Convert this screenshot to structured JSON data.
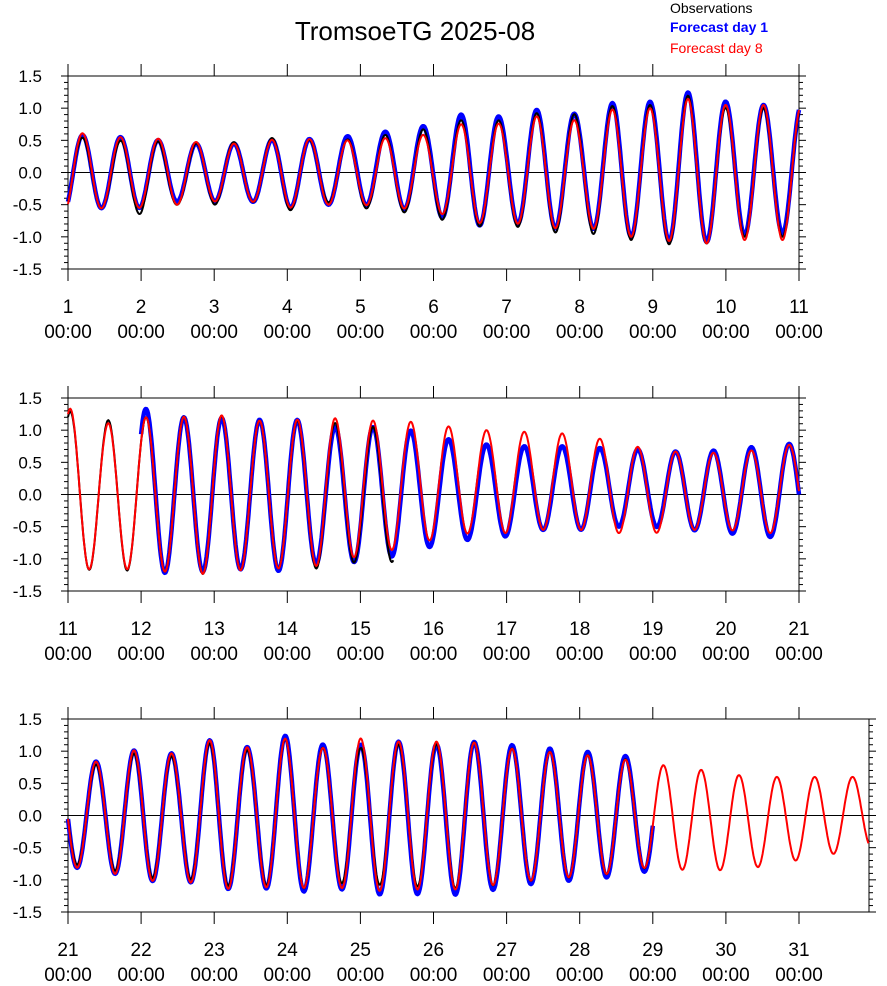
{
  "chart_data": {
    "type": "line",
    "title": "TromsoeTG 2025-08",
    "legend": {
      "placement": "top-right",
      "entries": [
        {
          "name": "Observations",
          "color": "#000000"
        },
        {
          "name": "Forecast day 1",
          "color": "#0000ff"
        },
        {
          "name": "Forecast day 8",
          "color": "#ff0000"
        }
      ]
    },
    "ylim": [
      -1.5,
      1.5
    ],
    "yticks": [
      "1.5",
      "1.0",
      "0.5",
      "0.0",
      "-0.5",
      "-1.0",
      "-1.5"
    ],
    "grid": false,
    "tick_time_label": "00:00",
    "panels": [
      {
        "xrange_days": [
          1,
          11
        ],
        "xticks": [
          "1",
          "2",
          "3",
          "4",
          "5",
          "6",
          "7",
          "8",
          "9",
          "10",
          "11"
        ],
        "series": [
          {
            "name": "Observations",
            "color": "#000000",
            "day_start": 1.0,
            "day_end": 11.0,
            "amplitude": [
              0.6,
              0.5,
              0.6,
              0.45,
              0.5,
              0.45,
              0.6,
              0.45,
              0.55,
              0.6,
              0.7,
              0.85,
              0.8,
              0.95,
              0.9,
              1.05,
              1.05,
              1.2,
              1.0,
              1.0,
              1.0
            ],
            "mean": [
              0.0,
              -0.05,
              -0.05,
              -0.05,
              0.0,
              0.0,
              0.0,
              0.0,
              0.0,
              0.0,
              0.0,
              0.0,
              0.0,
              0.0,
              0.0,
              0.0,
              0.0,
              0.0,
              0.0,
              0.0,
              0.0
            ]
          },
          {
            "name": "Forecast day 1",
            "color": "#0000ff",
            "day_start": 1.0,
            "day_end": 11.0,
            "amplitude": [
              0.6,
              0.55,
              0.55,
              0.45,
              0.45,
              0.45,
              0.55,
              0.5,
              0.55,
              0.6,
              0.7,
              0.9,
              0.8,
              0.95,
              0.85,
              1.05,
              1.05,
              1.2,
              1.05,
              1.0,
              1.0
            ],
            "mean": [
              0.0,
              0.0,
              0.0,
              0.0,
              0.0,
              0.0,
              0.0,
              0.0,
              0.05,
              0.05,
              0.05,
              0.05,
              0.05,
              0.05,
              0.05,
              0.05,
              0.05,
              0.05,
              0.05,
              0.05,
              0.05
            ]
          },
          {
            "name": "Forecast day 8",
            "color": "#ff0000",
            "day_start": 1.0,
            "day_end": 11.0,
            "amplitude": [
              0.65,
              0.55,
              0.55,
              0.5,
              0.45,
              0.45,
              0.55,
              0.5,
              0.5,
              0.55,
              0.6,
              0.8,
              0.75,
              0.9,
              0.8,
              1.0,
              1.0,
              1.15,
              1.05,
              1.05,
              1.05
            ],
            "mean": [
              0.0,
              0.0,
              0.0,
              0.0,
              0.0,
              0.0,
              0.0,
              0.0,
              0.0,
              0.0,
              0.0,
              0.0,
              0.0,
              0.0,
              0.0,
              0.0,
              0.0,
              0.0,
              0.0,
              0.0,
              0.0
            ]
          }
        ]
      },
      {
        "xrange_days": [
          11,
          21
        ],
        "xticks": [
          "11",
          "12",
          "13",
          "14",
          "15",
          "16",
          "17",
          "18",
          "19",
          "20",
          "21"
        ],
        "series": [
          {
            "name": "Observations",
            "color": "#000000",
            "day_start": 11.0,
            "day_end": 15.45,
            "amplitude": [
              1.25,
              1.15,
              1.2,
              1.2,
              1.25,
              1.15,
              1.15,
              1.15,
              1.05,
              1.05
            ],
            "mean": [
              0.05,
              0.0,
              0.0,
              0.0,
              0.0,
              0.0,
              0.0,
              0.0,
              0.0,
              0.0
            ]
          },
          {
            "name": "Forecast day 1",
            "color": "#0000ff",
            "day_start": 12.0,
            "day_end": 21.0,
            "amplitude": [
              1.3,
              1.2,
              1.2,
              1.15,
              1.2,
              1.05,
              1.05,
              1.0,
              0.85,
              0.75,
              0.7,
              0.65,
              0.65,
              0.6,
              0.6,
              0.6,
              0.65,
              0.7,
              0.75
            ],
            "mean": [
              0.05,
              0.0,
              0.0,
              0.0,
              0.0,
              0.0,
              0.0,
              0.05,
              0.05,
              0.05,
              0.05,
              0.1,
              0.1,
              0.1,
              0.1,
              0.05,
              0.05,
              0.05,
              0.05
            ]
          },
          {
            "name": "Forecast day 8",
            "color": "#ff0000",
            "day_start": 11.0,
            "day_end": 21.0,
            "amplitude": [
              1.3,
              1.1,
              1.2,
              1.2,
              1.25,
              1.15,
              1.15,
              1.15,
              1.05,
              1.0,
              0.9,
              0.8,
              0.8,
              0.75,
              0.75,
              0.7,
              0.65,
              0.6,
              0.6,
              0.65,
              0.7
            ],
            "mean": [
              0.05,
              0.0,
              0.0,
              0.0,
              0.0,
              0.0,
              0.0,
              0.05,
              0.1,
              0.15,
              0.2,
              0.2,
              0.2,
              0.2,
              0.2,
              0.1,
              0.05,
              0.05,
              0.05,
              0.05,
              0.1
            ]
          }
        ]
      },
      {
        "xrange_days": [
          21,
          32
        ],
        "xticks": [
          "21",
          "22",
          "23",
          "24",
          "25",
          "26",
          "27",
          "28",
          "29",
          "30",
          "31"
        ],
        "series": [
          {
            "name": "Observations",
            "color": "#000000",
            "day_start": 21.0,
            "day_end": 29.0,
            "amplitude": [
              0.75,
              0.8,
              1.0,
              0.9,
              1.15,
              1.0,
              1.2,
              1.05,
              1.05,
              1.1,
              1.1,
              1.15,
              1.05,
              1.0,
              0.95,
              0.9,
              0.8
            ],
            "mean": [
              0.0,
              0.0,
              0.0,
              0.0,
              0.0,
              0.0,
              0.0,
              0.0,
              0.0,
              0.0,
              0.0,
              0.0,
              0.0,
              0.0,
              0.0,
              0.0,
              0.0
            ]
          },
          {
            "name": "Forecast day 1",
            "color": "#0000ff",
            "day_start": 21.0,
            "day_end": 29.0,
            "amplitude": [
              0.8,
              0.85,
              1.05,
              0.95,
              1.2,
              1.05,
              1.25,
              1.1,
              1.15,
              1.2,
              1.15,
              1.2,
              1.1,
              1.05,
              1.0,
              0.95,
              0.85
            ],
            "mean": [
              0.0,
              0.0,
              0.0,
              0.0,
              0.0,
              0.0,
              0.0,
              0.0,
              -0.05,
              -0.05,
              -0.05,
              -0.05,
              0.0,
              0.0,
              0.0,
              0.0,
              0.0
            ]
          },
          {
            "name": "Forecast day 8",
            "color": "#ff0000",
            "day_start": 21.0,
            "day_end": 31.95,
            "amplitude": [
              0.8,
              0.85,
              1.05,
              0.95,
              1.2,
              1.05,
              1.2,
              1.05,
              1.2,
              1.15,
              1.15,
              1.15,
              1.05,
              1.0,
              0.95,
              0.9,
              0.8,
              0.8,
              0.75,
              0.7,
              0.65,
              0.6,
              0.55
            ],
            "mean": [
              0.0,
              0.0,
              0.0,
              0.0,
              0.0,
              0.0,
              0.0,
              0.0,
              0.0,
              0.0,
              0.0,
              0.0,
              0.0,
              0.0,
              0.0,
              0.0,
              0.0,
              -0.05,
              -0.1,
              -0.1,
              -0.05,
              0.0,
              0.05
            ]
          }
        ]
      }
    ]
  }
}
